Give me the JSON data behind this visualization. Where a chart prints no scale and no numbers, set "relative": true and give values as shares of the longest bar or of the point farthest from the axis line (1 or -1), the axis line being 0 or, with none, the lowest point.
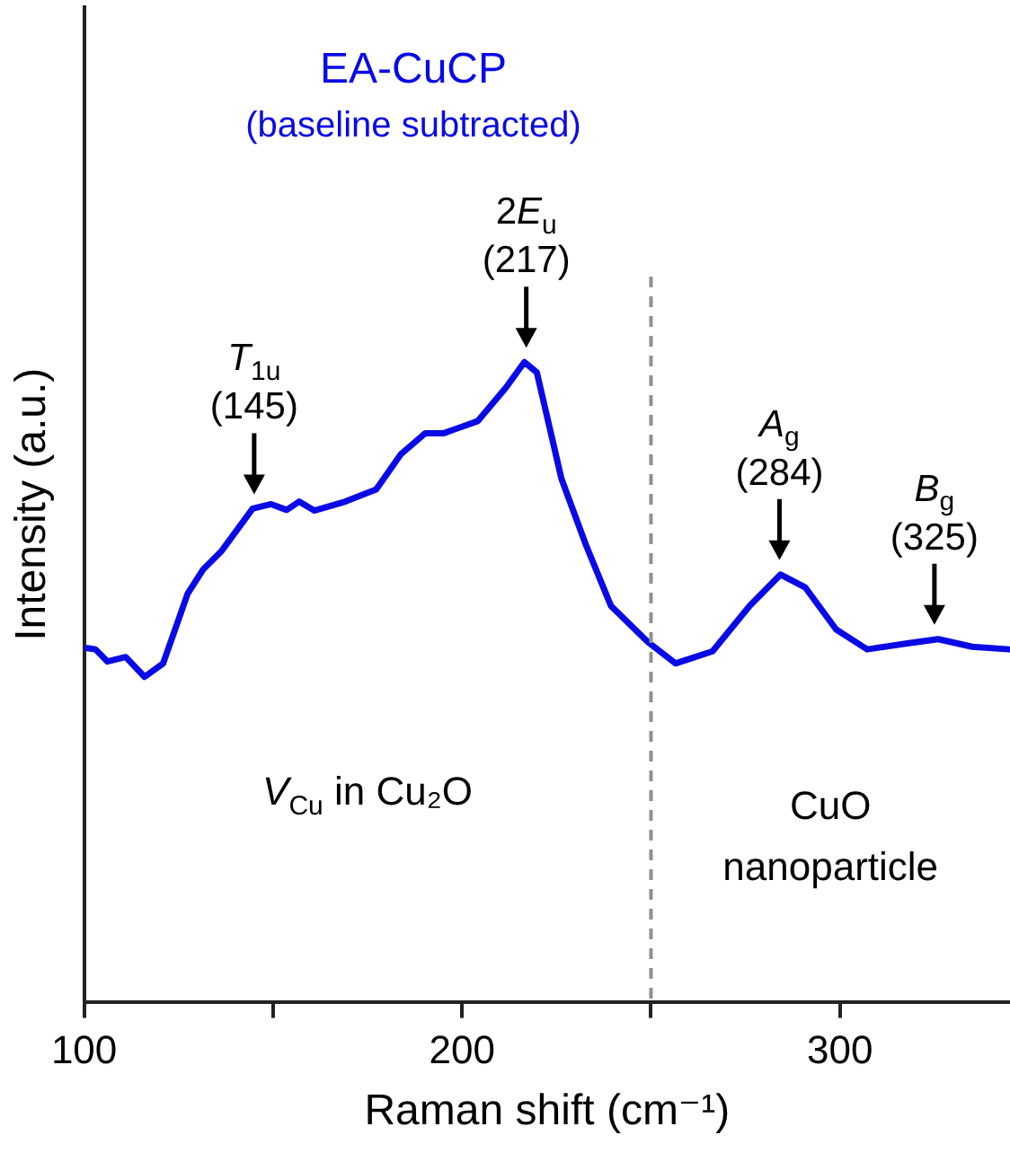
{
  "chart_data": {
    "type": "line",
    "title": "EA-CuCP",
    "subtitle": "(baseline subtracted)",
    "xlabel": "Raman shift (cm⁻¹)",
    "ylabel": "Intensity (a.u.)",
    "relative": true,
    "xlim": [
      100,
      345
    ],
    "xticks": [
      100,
      {
        "value": 150,
        "label": null
      },
      200,
      {
        "value": 250,
        "label": null
      },
      300
    ],
    "series": [
      {
        "color": "#0a0ae6",
        "x": [
          100.8,
          103,
          106.2,
          111,
          116,
          120.9,
          127.4,
          131.5,
          136.4,
          144.6,
          149.5,
          153.6,
          156.9,
          160.9,
          169.1,
          177.3,
          183.8,
          190.3,
          195.2,
          204.2,
          211.6,
          216.5,
          219.8,
          226.3,
          232.8,
          239.4,
          249.2,
          256.5,
          266.3,
          276.1,
          284.3,
          290.8,
          299,
          307.2,
          318.6,
          326,
          335,
          344.8
        ],
        "values": [
          0.553,
          0.551,
          0.532,
          0.539,
          0.508,
          0.529,
          0.638,
          0.676,
          0.705,
          0.771,
          0.778,
          0.769,
          0.782,
          0.768,
          0.782,
          0.801,
          0.856,
          0.889,
          0.889,
          0.908,
          0.96,
          1,
          0.984,
          0.818,
          0.714,
          0.619,
          0.5625,
          0.529,
          0.548,
          0.619,
          0.668,
          0.648,
          0.582,
          0.551,
          0.561,
          0.567,
          0.555,
          0.551
        ]
      }
    ],
    "ref_lines": [
      {
        "axis": "x",
        "value": 250,
        "color": "#909090",
        "line_style": "dashed"
      }
    ],
    "annotations": [
      {
        "text": "T$_{1u}$\n(145)",
        "x": 145,
        "y": 0.771
      },
      {
        "text": "2E$_{u}$\n(217)",
        "x": 217,
        "y": 1
      },
      {
        "text": "A$_{g}$\n(284)",
        "x": 284,
        "y": 0.668
      },
      {
        "text": "B$_{g}$\n(325)",
        "x": 325,
        "y": 0.567
      },
      "V$_{Cu}$ in Cu₂O",
      "CuO\nnanoparticle"
    ],
    "grid": false,
    "legend": false,
    "marker": "none",
    "line_style": "solid"
  }
}
